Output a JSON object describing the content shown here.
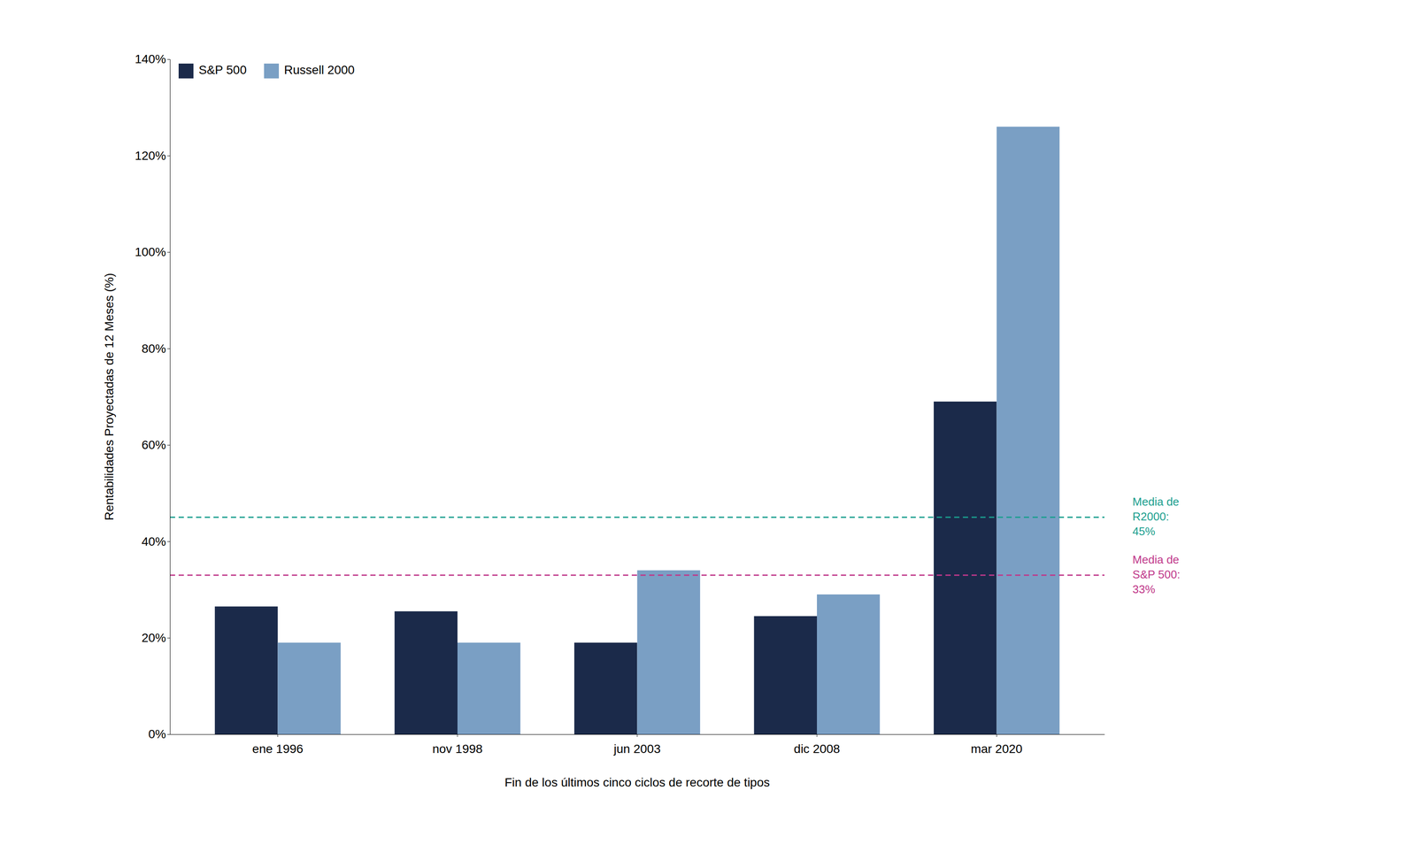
{
  "chart_data": {
    "type": "bar",
    "xlabel": "Fin de los últimos cinco ciclos de recorte de tipos",
    "ylabel": "Rentabilidades Proyectadas de 12 Meses (%)",
    "categories": [
      "ene 1996",
      "nov 1998",
      "jun 2003",
      "dic 2008",
      "mar 2020"
    ],
    "series": [
      {
        "name": "S&P 500",
        "color": "#1b2a4a",
        "values": [
          26.5,
          25.5,
          19.0,
          24.5,
          69.0
        ]
      },
      {
        "name": "Russell 2000",
        "color": "#7a9fc4",
        "values": [
          19.0,
          19.0,
          34.0,
          29.0,
          126.0
        ]
      }
    ],
    "ylim": [
      0,
      140
    ],
    "yticks": [
      {
        "value": 0,
        "label": "0%"
      },
      {
        "value": 20,
        "label": "20%"
      },
      {
        "value": 40,
        "label": "40%"
      },
      {
        "value": 60,
        "label": "60%"
      },
      {
        "value": 80,
        "label": "80%"
      },
      {
        "value": 100,
        "label": "100%"
      },
      {
        "value": 120,
        "label": "120%"
      },
      {
        "value": 140,
        "label": "140%"
      }
    ],
    "annotations": [
      {
        "text": [
          "Media de",
          "R2000:",
          "45%"
        ],
        "y": 45.0,
        "color": "#1a9e8e",
        "line_style": "dashed"
      },
      {
        "text": [
          "Media de",
          "S&P 500:",
          "33%"
        ],
        "y": 33.0,
        "color": "#c0388a",
        "line_style": "dashed"
      }
    ],
    "legend": "upper left",
    "grid": false
  }
}
